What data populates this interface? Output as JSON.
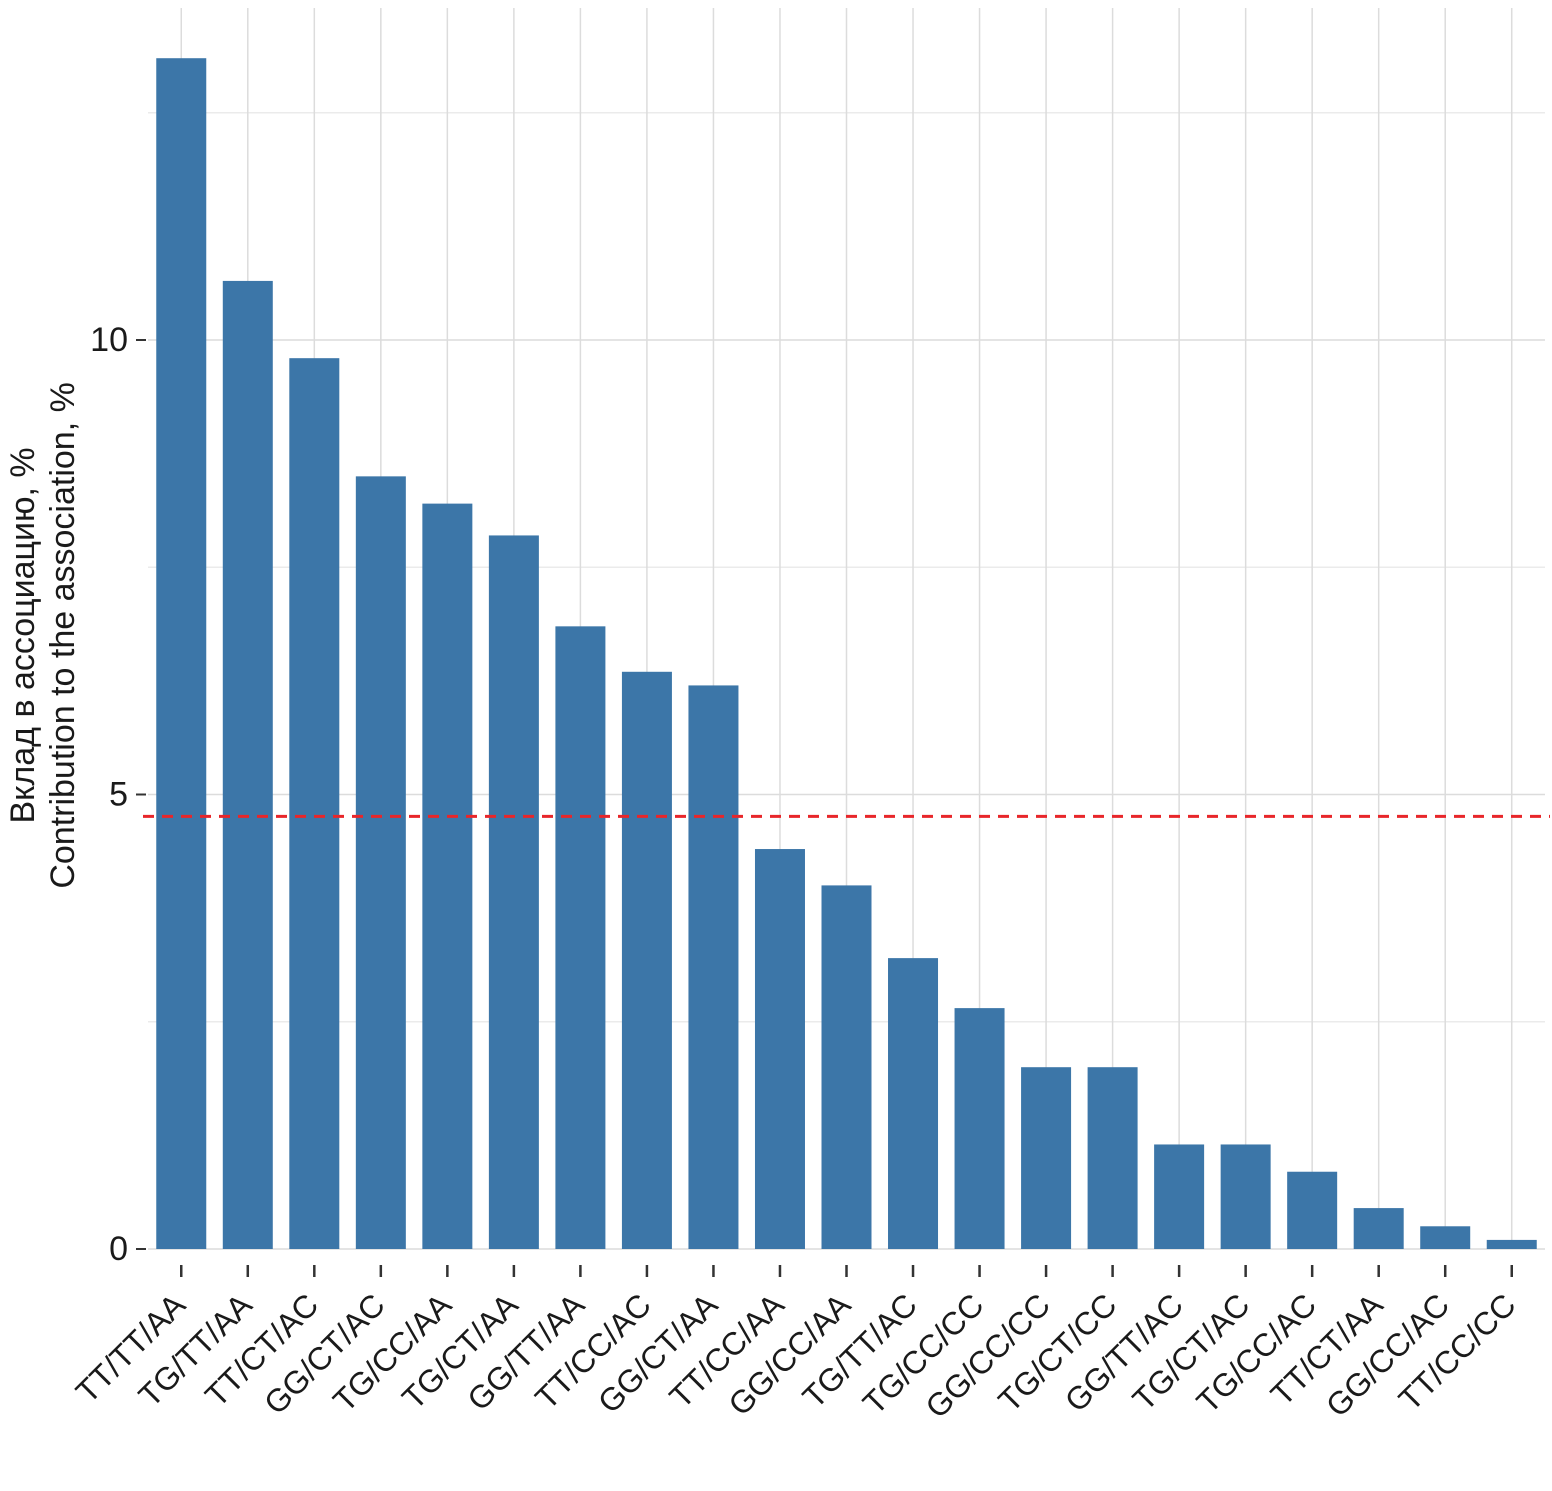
{
  "chart_data": {
    "type": "bar",
    "title": "",
    "ylabel_line1": "Вклад в ассоциацию, %",
    "ylabel_line2": "Contribution to the association, %",
    "xlabel": "",
    "categories": [
      "TT/TT/AA",
      "TG/TT/AA",
      "TT/CT/AC",
      "GG/CT/AC",
      "TG/CC/AA",
      "TG/CT/AA",
      "GG/TT/AA",
      "TT/CC/AC",
      "GG/CT/AA",
      "TT/CC/AA",
      "GG/CC/AA",
      "TG/TT/AC",
      "TG/CC/CC",
      "GG/CC/CC",
      "TG/CT/CC",
      "GG/TT/AC",
      "TG/CT/AC",
      "TG/CC/AC",
      "TT/CT/AA",
      "GG/CC/AC",
      "TT/CC/CC"
    ],
    "values": [
      13.1,
      10.65,
      9.8,
      8.5,
      8.2,
      7.85,
      6.85,
      6.35,
      6.2,
      4.4,
      4.0,
      3.2,
      2.65,
      2.0,
      2.0,
      1.15,
      1.15,
      0.85,
      0.45,
      0.25,
      0.1
    ],
    "yticks": [
      0,
      5,
      10
    ],
    "ylim": [
      0,
      13.5
    ],
    "grid_major": [
      0,
      5,
      10
    ],
    "grid_minor": [
      2.5,
      7.5,
      12.5
    ],
    "reference_line": {
      "value": 4.76,
      "style": "dashed"
    },
    "legend": "none",
    "colors": {
      "bar": "#3c76a8",
      "reference_line": "#e8262a",
      "grid_major": "#dcdcdc",
      "grid_minor": "#ebebeb",
      "tick": "#333333",
      "text": "#1a1a1a",
      "background": "#ffffff"
    }
  }
}
